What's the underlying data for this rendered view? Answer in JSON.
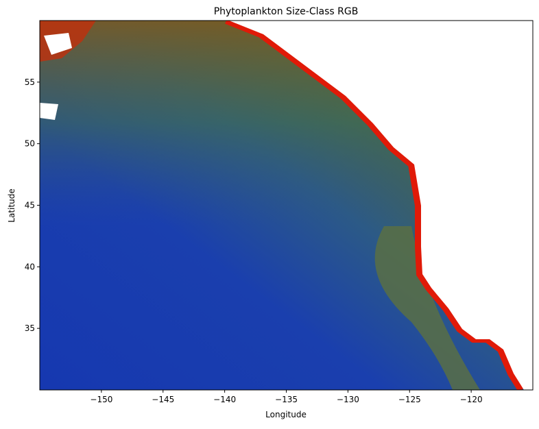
{
  "chart_data": {
    "type": "image",
    "title": "Phytoplankton Size-Class RGB",
    "xlabel": "Longitude",
    "ylabel": "Latitude",
    "xlim": [
      -155,
      -115
    ],
    "ylim": [
      30,
      60
    ],
    "xticks": [
      {
        "value": -150,
        "label": "−150"
      },
      {
        "value": -145,
        "label": "−145"
      },
      {
        "value": -140,
        "label": "−140"
      },
      {
        "value": -135,
        "label": "−135"
      },
      {
        "value": -130,
        "label": "−130"
      },
      {
        "value": -125,
        "label": "−125"
      },
      {
        "value": -120,
        "label": "−120"
      }
    ],
    "yticks": [
      35,
      40,
      45,
      50,
      55
    ]
  }
}
